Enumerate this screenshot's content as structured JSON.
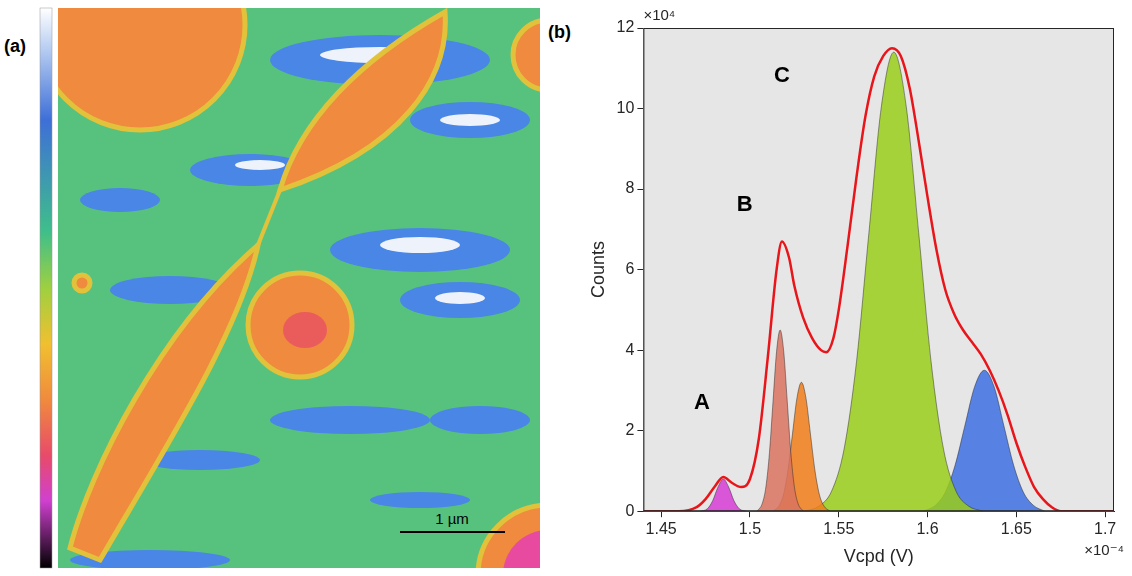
{
  "image_panel": {
    "label": "(a)",
    "scale_bar": "1 µm"
  },
  "chart_data": {
    "type": "line",
    "panel_label": "(b)",
    "x_label": "Vcpd (V)",
    "y_label": "Counts",
    "x_multiplier": "×10⁻⁴",
    "y_multiplier": "×10⁴",
    "xlim": [
      1.44,
      1.705
    ],
    "xticks": [
      1.45,
      1.5,
      1.55,
      1.6,
      1.65,
      1.7
    ],
    "ylim": [
      0,
      12
    ],
    "yticks": [
      0,
      2,
      4,
      6,
      8,
      10,
      12
    ],
    "grid": false,
    "annotations": [
      {
        "text": "A",
        "x": 1.473,
        "y": 2.7
      },
      {
        "text": "B",
        "x": 1.497,
        "y": 7.6
      },
      {
        "text": "C",
        "x": 1.518,
        "y": 10.8
      }
    ],
    "series": [
      {
        "type": "line",
        "color": "#e8161b",
        "x": [
          1.44,
          1.46,
          1.47,
          1.475,
          1.48,
          1.485,
          1.49,
          1.495,
          1.5,
          1.505,
          1.51,
          1.515,
          1.518,
          1.522,
          1.525,
          1.53,
          1.535,
          1.54,
          1.543,
          1.547,
          1.55,
          1.555,
          1.56,
          1.565,
          1.57,
          1.575,
          1.58,
          1.585,
          1.59,
          1.595,
          1.6,
          1.605,
          1.61,
          1.615,
          1.62,
          1.625,
          1.63,
          1.635,
          1.64,
          1.645,
          1.65,
          1.655,
          1.66,
          1.665,
          1.67,
          1.675,
          1.705
        ],
        "values": [
          0,
          0,
          0.1,
          0.3,
          0.6,
          0.85,
          0.7,
          0.6,
          0.8,
          1.8,
          3.8,
          6.0,
          6.7,
          6.3,
          5.6,
          4.8,
          4.3,
          4.0,
          3.95,
          4.3,
          5.0,
          6.6,
          8.3,
          9.8,
          10.8,
          11.3,
          11.5,
          11.3,
          10.5,
          9.2,
          7.8,
          6.5,
          5.5,
          4.9,
          4.5,
          4.2,
          3.9,
          3.5,
          3.0,
          2.4,
          1.7,
          1.1,
          0.6,
          0.3,
          0.1,
          0,
          0
        ]
      },
      {
        "type": "area",
        "color": "#d63cd6",
        "x": [
          1.472,
          1.476,
          1.479,
          1.482,
          1.485,
          1.488,
          1.491,
          1.494,
          1.498
        ],
        "values": [
          0,
          0.06,
          0.26,
          0.6,
          0.8,
          0.6,
          0.26,
          0.06,
          0
        ]
      },
      {
        "type": "area",
        "color": "#d9735f",
        "x": [
          1.504,
          1.507,
          1.509,
          1.511,
          1.513,
          1.515,
          1.517,
          1.519,
          1.521,
          1.523,
          1.525,
          1.527,
          1.53
        ],
        "values": [
          0,
          0.2,
          0.61,
          1.46,
          2.73,
          3.97,
          4.5,
          3.97,
          2.73,
          1.46,
          0.61,
          0.2,
          0
        ]
      },
      {
        "type": "area",
        "color": "#f07c1a",
        "x": [
          1.513,
          1.5165,
          1.519,
          1.5215,
          1.524,
          1.5265,
          1.529,
          1.5315,
          1.534,
          1.5365,
          1.539,
          1.5415,
          1.545
        ],
        "values": [
          0,
          0.14,
          0.43,
          1.04,
          1.94,
          2.82,
          3.2,
          2.82,
          1.94,
          1.04,
          0.43,
          0.14,
          0
        ]
      },
      {
        "type": "area",
        "color": "#99cc1a",
        "x": [
          1.531,
          1.539,
          1.546,
          1.553,
          1.56,
          1.567,
          1.574,
          1.581,
          1.588,
          1.595,
          1.602,
          1.609,
          1.616,
          1.623,
          1.631
        ],
        "values": [
          0,
          0.13,
          0.5,
          1.54,
          3.71,
          6.92,
          10.05,
          11.4,
          10.05,
          6.92,
          3.71,
          1.54,
          0.5,
          0.13,
          0
        ]
      },
      {
        "type": "area",
        "color": "#3d6fe0",
        "x": [
          1.598,
          1.6045,
          1.61,
          1.6155,
          1.621,
          1.6265,
          1.632,
          1.6375,
          1.643,
          1.6485,
          1.654,
          1.6595,
          1.666
        ],
        "values": [
          0,
          0.15,
          0.47,
          1.14,
          2.12,
          3.09,
          3.5,
          3.09,
          2.12,
          1.14,
          0.47,
          0.15,
          0
        ]
      }
    ]
  }
}
